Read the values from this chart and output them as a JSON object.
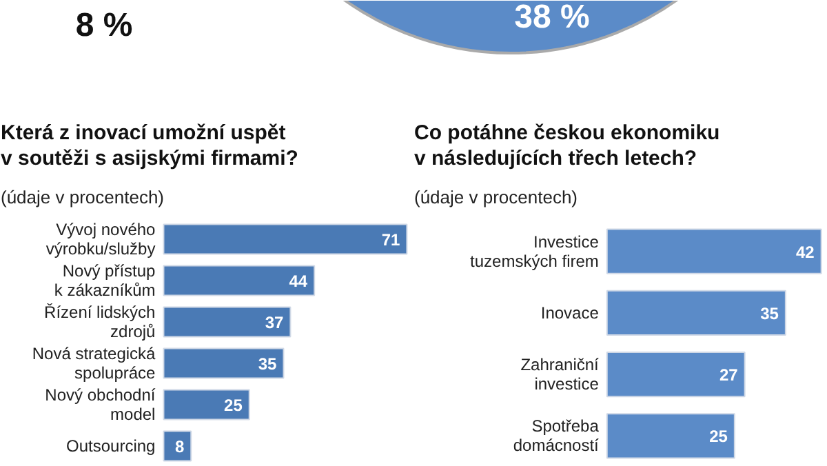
{
  "chart_data": [
    {
      "type": "other",
      "annotations": [
        "8 %",
        "38 %"
      ],
      "color": "#5b8bc8"
    },
    {
      "type": "bar",
      "orientation": "horizontal",
      "title": "Která z inovací umožní uspět\nv soutěži s asijskými firmami?",
      "subtitle": "(údaje v procentech)",
      "categories": [
        "Vývoj nového\nvýrobku/služby",
        "Nový přístup\nk zákazníkům",
        "Řízení lidských\nzdrojů",
        "Nová strategická\nspolupráce",
        "Nový obchodní\nmodel",
        "Outsourcing"
      ],
      "values": [
        71,
        44,
        37,
        35,
        25,
        8
      ],
      "color": "#4a7ab5",
      "data_labels": true
    },
    {
      "type": "bar",
      "orientation": "horizontal",
      "title": "Co potáhne českou ekonomiku\nv následujících třech letech?",
      "subtitle": "(údaje v procentech)",
      "categories": [
        "Investice\ntuzemských firem",
        "Inovace",
        "Zahraniční\ninvestice",
        "Spotřeba\ndomácností"
      ],
      "values": [
        42,
        35,
        27,
        25
      ],
      "color": "#5b8bc8",
      "data_labels": true
    }
  ]
}
